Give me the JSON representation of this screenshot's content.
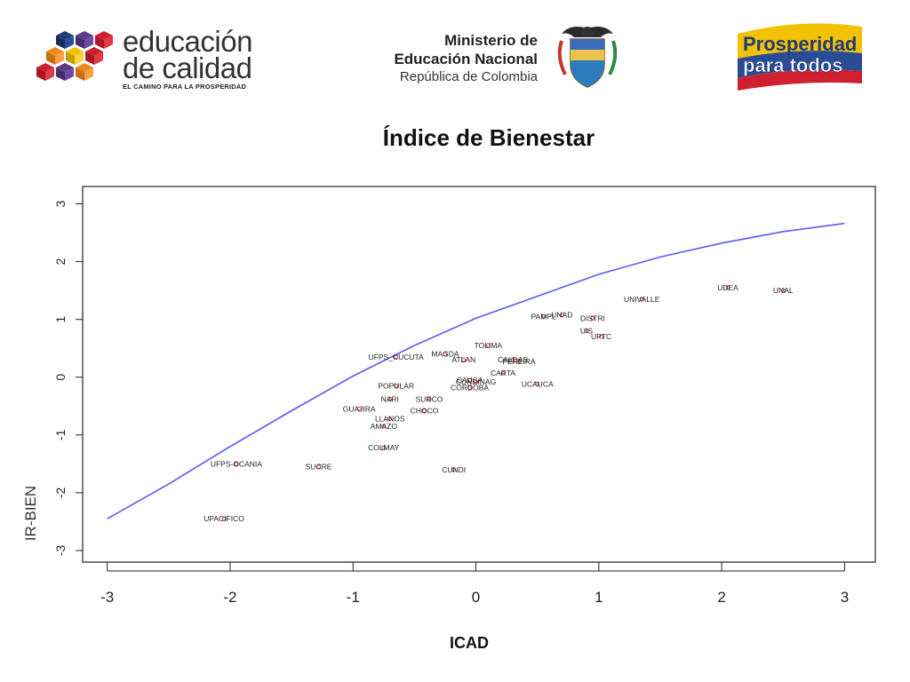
{
  "header": {
    "left_logo": {
      "line1": "educación",
      "line2": "de calidad",
      "tagline": "EL CAMINO PARA LA PROSPERIDAD"
    },
    "ministry": {
      "line1": "Ministerio de",
      "line2": "Educación Nacional",
      "line3": "República de Colombia"
    },
    "right_logo": {
      "line1": "Prosperidad",
      "line2": "para todos"
    },
    "colors": {
      "blue": "#1c3a7c",
      "yellow": "#f2c200",
      "red": "#d01f2e",
      "orange": "#f08a1c",
      "purple": "#5b3a8c"
    }
  },
  "chart_data": {
    "type": "scatter",
    "title": "Índice de Bienestar",
    "xlabel": "ICAD",
    "ylabel": "IR-BIEN",
    "xlim": [
      -3,
      3
    ],
    "ylim": [
      -3,
      3
    ],
    "x_ticks": [
      "-3",
      "-2",
      "-1",
      "0",
      "1",
      "2",
      "3"
    ],
    "y_ticks": [
      "3",
      "2",
      "1",
      "0",
      "-1",
      "-2",
      "-3"
    ],
    "grid": false,
    "curve_color": "#5a5aff",
    "point_color": "#cc2222",
    "curve": [
      {
        "x": -3.0,
        "y": -2.45
      },
      {
        "x": -2.5,
        "y": -1.85
      },
      {
        "x": -2.0,
        "y": -1.2
      },
      {
        "x": -1.5,
        "y": -0.58
      },
      {
        "x": -1.0,
        "y": 0.02
      },
      {
        "x": -0.5,
        "y": 0.55
      },
      {
        "x": 0.0,
        "y": 1.02
      },
      {
        "x": 0.5,
        "y": 1.4
      },
      {
        "x": 1.0,
        "y": 1.78
      },
      {
        "x": 1.5,
        "y": 2.08
      },
      {
        "x": 2.0,
        "y": 2.32
      },
      {
        "x": 2.5,
        "y": 2.52
      },
      {
        "x": 3.0,
        "y": 2.66
      }
    ],
    "points": [
      {
        "label": "UDEA",
        "x": 2.05,
        "y": 1.55
      },
      {
        "label": "UNAL",
        "x": 2.5,
        "y": 1.5
      },
      {
        "label": "UNIVALLE",
        "x": 1.35,
        "y": 1.35
      },
      {
        "label": "PAMPL",
        "x": 0.55,
        "y": 1.05
      },
      {
        "label": "UNAD",
        "x": 0.7,
        "y": 1.08
      },
      {
        "label": "DISTRI",
        "x": 0.95,
        "y": 1.02
      },
      {
        "label": "UIS",
        "x": 0.9,
        "y": 0.8
      },
      {
        "label": "UPTC",
        "x": 1.02,
        "y": 0.7
      },
      {
        "label": "TOLIMA",
        "x": 0.1,
        "y": 0.55
      },
      {
        "label": "UFPS_CUCUTA",
        "x": -0.65,
        "y": 0.35
      },
      {
        "label": "MAGDA",
        "x": -0.25,
        "y": 0.4
      },
      {
        "label": "ATLAN",
        "x": -0.1,
        "y": 0.3
      },
      {
        "label": "CALDAS",
        "x": 0.3,
        "y": 0.3
      },
      {
        "label": "PEREIRA",
        "x": 0.35,
        "y": 0.27
      },
      {
        "label": "CARTA",
        "x": 0.22,
        "y": 0.07
      },
      {
        "label": "CAUCA",
        "x": -0.05,
        "y": -0.05
      },
      {
        "label": "CUNDINAG",
        "x": 0.0,
        "y": -0.08
      },
      {
        "label": "CORDOBA",
        "x": -0.05,
        "y": -0.18
      },
      {
        "label": "UCAUCA",
        "x": 0.5,
        "y": -0.12
      },
      {
        "label": "POPULAR",
        "x": -0.65,
        "y": -0.15
      },
      {
        "label": "NARI",
        "x": -0.7,
        "y": -0.38
      },
      {
        "label": "SURCO",
        "x": -0.38,
        "y": -0.38
      },
      {
        "label": "CHOCO",
        "x": -0.42,
        "y": -0.58
      },
      {
        "label": "GUAJIRA",
        "x": -0.95,
        "y": -0.55
      },
      {
        "label": "LLANOS",
        "x": -0.7,
        "y": -0.72
      },
      {
        "label": "AMAZO",
        "x": -0.75,
        "y": -0.85
      },
      {
        "label": "COLMAY",
        "x": -0.75,
        "y": -1.22
      },
      {
        "label": "UFPS-OCANIA",
        "x": -1.95,
        "y": -1.5
      },
      {
        "label": "SUCRE",
        "x": -1.28,
        "y": -1.55
      },
      {
        "label": "CUNDI",
        "x": -0.18,
        "y": -1.6
      },
      {
        "label": "UPACIFICO",
        "x": -2.05,
        "y": -2.45
      }
    ]
  }
}
